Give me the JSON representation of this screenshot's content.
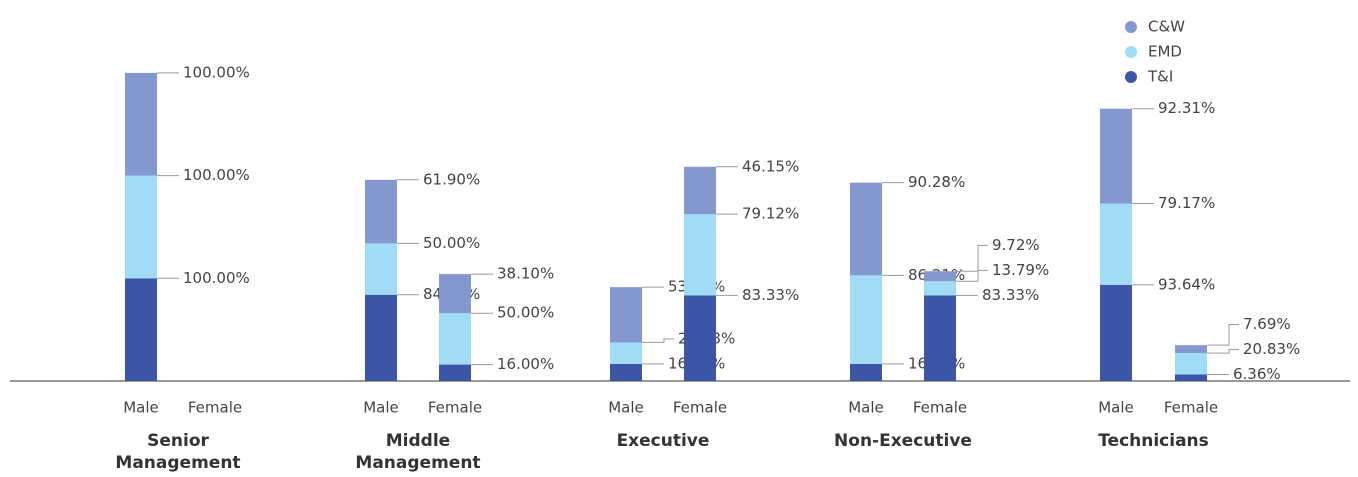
{
  "chart_data": {
    "type": "bar",
    "stacked": true,
    "categories": [
      "Senior Management",
      "Middle Management",
      "Executive",
      "Non-Executive",
      "Technicians"
    ],
    "subcategories": [
      "Male",
      "Female"
    ],
    "series": [
      {
        "name": "T&I",
        "color": "#3d55a5",
        "values": [
          [
            100,
            null
          ],
          [
            84,
            16
          ],
          [
            16.67,
            83.33
          ],
          [
            16.67,
            83.33
          ],
          [
            93.64,
            6.36
          ]
        ],
        "value_labels": [
          [
            "100.00%",
            null
          ],
          [
            "84.00%",
            "16.00%"
          ],
          [
            "16.67%",
            "83.33%"
          ],
          [
            "16.67%",
            "83.33%"
          ],
          [
            "93.64%",
            "6.36%"
          ]
        ]
      },
      {
        "name": "EMD",
        "color": "#a0dcf5",
        "values": [
          [
            100,
            null
          ],
          [
            50,
            50
          ],
          [
            20.88,
            79.12
          ],
          [
            86.21,
            13.79
          ],
          [
            79.17,
            20.83
          ]
        ],
        "value_labels": [
          [
            "100.00%",
            null
          ],
          [
            "50.00%",
            "50.00%"
          ],
          [
            "20.88%",
            "79.12%"
          ],
          [
            "86.21%",
            "13.79%"
          ],
          [
            "79.17%",
            "20.83%"
          ]
        ]
      },
      {
        "name": "C&W",
        "color": "#8497cf",
        "values": [
          [
            100,
            null
          ],
          [
            61.9,
            38.1
          ],
          [
            53.85,
            46.15
          ],
          [
            90.28,
            9.72
          ],
          [
            92.31,
            7.69
          ]
        ],
        "value_labels": [
          [
            "100.00%",
            null
          ],
          [
            "61.90%",
            "38.10%"
          ],
          [
            "53.85%",
            "46.15%"
          ],
          [
            "90.28%",
            "9.72%"
          ],
          [
            "92.31%",
            "7.69%"
          ]
        ]
      }
    ],
    "legend": "top-right"
  }
}
